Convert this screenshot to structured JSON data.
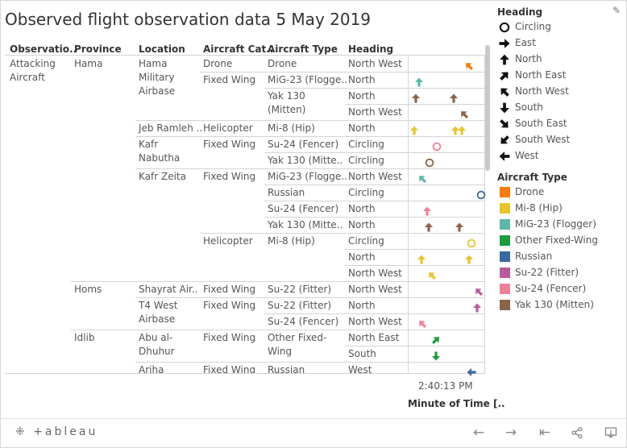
{
  "title": "Observed flight observation data 5 May 2019",
  "headers": [
    "Observatio..",
    "Province",
    "Location",
    "Aircraft Cat..",
    "Aircraft Type",
    "Heading"
  ],
  "colors": {
    "Drone": "#f57c0d",
    "Mi-8 (Hip)": "#e7c42a",
    "MiG-23 (Flogger)": "#5db8a8",
    "Other Fixed-Wing": "#1f9a3e",
    "Russian": "#3b68a0",
    "Su-22 (Fitter)": "#b95b9b",
    "Su-24 (Fencer)": "#f0809a",
    "Yak 130 (Mitten)": "#8b6348"
  },
  "cells": {
    "observation": "Attacking Aircraft",
    "province_hama": "Hama",
    "province_homs": "Homs",
    "province_idlib": "Idlib",
    "loc_hama_airbase": "Hama Military Airbase",
    "loc_jeb": "Jeb Ramleh ..",
    "loc_kafr_nabutha": "Kafr Nabutha",
    "loc_kafr_zeita": "Kafr Zeita",
    "loc_shayrat": "Shayrat Air..",
    "loc_t4": "T4 West Airbase",
    "loc_abu": "Abu al-Dhuhur",
    "loc_ariha": "Ariha",
    "cat_drone": "Drone",
    "cat_fixed_wing": "Fixed Wing",
    "cat_helicopter": "Helicopter"
  },
  "rows": [
    {
      "type": "Drone",
      "heading": "North West",
      "marks": [
        {
          "time": "2:41:55 PM",
          "heading": "North West",
          "aircraft": "Drone"
        }
      ]
    },
    {
      "type": "MiG-23 (Flogge..",
      "heading": "North",
      "marks": [
        {
          "time": "2:40:13 PM",
          "heading": "North",
          "aircraft": "MiG-23 (Flogger)"
        }
      ]
    },
    {
      "type": "Yak 130 (Mitten)",
      "heading": "North",
      "marks": [
        {
          "time": "2:40:06 PM",
          "heading": "North",
          "aircraft": "Yak 130 (Mitten)"
        },
        {
          "time": "2:41:25 PM",
          "heading": "North",
          "aircraft": "Yak 130 (Mitten)"
        }
      ]
    },
    {
      "type": "",
      "heading": "North West",
      "marks": [
        {
          "time": "2:41:45 PM",
          "heading": "North West",
          "aircraft": "Yak 130 (Mitten)"
        }
      ]
    },
    {
      "type": "Mi-8 (Hip)",
      "heading": "North",
      "marks": [
        {
          "time": "2:40:03 PM",
          "heading": "North",
          "aircraft": "Mi-8 (Hip)"
        },
        {
          "time": "2:41:28 PM",
          "heading": "North",
          "aircraft": "Mi-8 (Hip)"
        },
        {
          "time": "2:41:40 PM",
          "heading": "North",
          "aircraft": "Mi-8 (Hip)"
        }
      ]
    },
    {
      "type": "Su-24 (Fencer)",
      "heading": "Circling",
      "marks": [
        {
          "time": "2:40:50 PM",
          "heading": "Circling",
          "aircraft": "Su-24 (Fencer)"
        }
      ]
    },
    {
      "type": "Yak 130 (Mitte..",
      "heading": "Circling",
      "marks": [
        {
          "time": "2:40:35 PM",
          "heading": "Circling",
          "aircraft": "Yak 130 (Mitten)"
        }
      ]
    },
    {
      "type": "MiG-23 (Flogge..",
      "heading": "North West",
      "marks": [
        {
          "time": "2:40:20 PM",
          "heading": "North West",
          "aircraft": "MiG-23 (Flogger)"
        }
      ]
    },
    {
      "type": "Russian",
      "heading": "Circling",
      "marks": [
        {
          "time": "2:42:20 PM",
          "heading": "Circling",
          "aircraft": "Russian"
        }
      ]
    },
    {
      "type": "Su-24 (Fencer)",
      "heading": "North",
      "marks": [
        {
          "time": "2:40:30 PM",
          "heading": "North",
          "aircraft": "Su-24 (Fencer)"
        }
      ]
    },
    {
      "type": "Yak 130 (Mitte..",
      "heading": "North",
      "marks": [
        {
          "time": "2:40:33 PM",
          "heading": "North",
          "aircraft": "Yak 130 (Mitten)"
        },
        {
          "time": "2:41:35 PM",
          "heading": "North",
          "aircraft": "Yak 130 (Mitten)"
        }
      ]
    },
    {
      "type": "Mi-8 (Hip)",
      "heading": "Circling",
      "marks": [
        {
          "time": "2:42:00 PM",
          "heading": "Circling",
          "aircraft": "Mi-8 (Hip)"
        }
      ]
    },
    {
      "type": "",
      "heading": "North",
      "marks": [
        {
          "time": "2:40:18 PM",
          "heading": "North",
          "aircraft": "Mi-8 (Hip)"
        },
        {
          "time": "2:41:55 PM",
          "heading": "North",
          "aircraft": "Mi-8 (Hip)"
        }
      ]
    },
    {
      "type": "",
      "heading": "North West",
      "marks": [
        {
          "time": "2:40:40 PM",
          "heading": "North West",
          "aircraft": "Mi-8 (Hip)"
        }
      ]
    },
    {
      "type": "Su-22 (Fitter)",
      "heading": "North West",
      "marks": [
        {
          "time": "2:42:15 PM",
          "heading": "North West",
          "aircraft": "Su-22 (Fitter)"
        }
      ]
    },
    {
      "type": "Su-22 (Fitter)",
      "heading": "North",
      "marks": [
        {
          "time": "2:42:12 PM",
          "heading": "North",
          "aircraft": "Su-22 (Fitter)"
        }
      ]
    },
    {
      "type": "Su-24 (Fencer)",
      "heading": "North West",
      "marks": [
        {
          "time": "2:40:20 PM",
          "heading": "North West",
          "aircraft": "Su-24 (Fencer)"
        }
      ]
    },
    {
      "type": "Other Fixed-Wing",
      "heading": "North East",
      "marks": [
        {
          "time": "2:40:48 PM",
          "heading": "North East",
          "aircraft": "Other Fixed-Wing"
        }
      ]
    },
    {
      "type": "",
      "heading": "South",
      "marks": [
        {
          "time": "2:40:48 PM",
          "heading": "South",
          "aircraft": "Other Fixed-Wing"
        }
      ]
    },
    {
      "type": "Russian",
      "heading": "West",
      "marks": [
        {
          "time": "2:42:00 PM",
          "heading": "West",
          "aircraft": "Russian"
        }
      ]
    }
  ],
  "axis": {
    "tick_label": "2:40:13 PM",
    "title": "Minute of Time [.."
  },
  "legend": {
    "heading_title": "Heading",
    "headings": [
      "Circling",
      "East",
      "North",
      "North East",
      "North West",
      "South",
      "South East",
      "South West",
      "West"
    ],
    "type_title": "Aircraft Type",
    "types": [
      "Drone",
      "Mi-8 (Hip)",
      "MiG-23 (Flogger)",
      "Other Fixed-Wing",
      "Russian",
      "Su-22 (Fitter)",
      "Su-24 (Fencer)",
      "Yak 130 (Mitten)"
    ]
  },
  "toolbar": {
    "brand": "+ableau",
    "undo": "←",
    "redo": "→",
    "revert": "⇤",
    "share": "share-icon",
    "download": "download-icon"
  }
}
